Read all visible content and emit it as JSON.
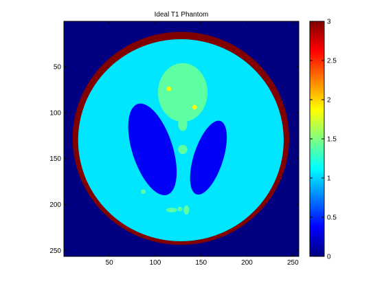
{
  "chart_data": {
    "type": "heatmap",
    "title": "Ideal T1 Phantom",
    "xlabel": "",
    "ylabel": "",
    "xlim": [
      0.5,
      256.5
    ],
    "ylim": [
      256.5,
      0.5
    ],
    "x_ticks": [
      50,
      100,
      150,
      200,
      250
    ],
    "y_ticks": [
      50,
      100,
      150,
      200,
      250
    ],
    "colorbar": {
      "colormap": "jet",
      "clim": [
        0,
        3
      ],
      "ticks": [
        0,
        0.5,
        1,
        1.5,
        2,
        2.5,
        3
      ],
      "tick_labels": [
        "0",
        "0.5",
        "1",
        "1.5",
        "2",
        "2.5",
        "3"
      ]
    },
    "background_value": 0.0,
    "regions": [
      {
        "name": "outer-skull",
        "shape": "ellipse",
        "cx": 128,
        "cy": 128,
        "rx": 118,
        "ry": 116,
        "value": 3.0
      },
      {
        "name": "brain",
        "shape": "ellipse",
        "cx": 128,
        "cy": 130,
        "rx": 112,
        "ry": 110,
        "value": 1.05
      },
      {
        "name": "left-ventricle",
        "shape": "ellipse",
        "cx": 97,
        "cy": 140,
        "rx": 22,
        "ry": 52,
        "rotation": -18,
        "value": 0.35
      },
      {
        "name": "right-ventricle",
        "shape": "ellipse",
        "cx": 158,
        "cy": 149,
        "rx": 16,
        "ry": 42,
        "rotation": 18,
        "value": 0.35
      },
      {
        "name": "central-blob",
        "shape": "ellipse",
        "cx": 130,
        "cy": 78,
        "rx": 27,
        "ry": 32,
        "value": 1.4
      },
      {
        "name": "stem-1",
        "shape": "ellipse",
        "cx": 130,
        "cy": 113,
        "rx": 5,
        "ry": 7,
        "value": 1.4
      },
      {
        "name": "stem-2",
        "shape": "ellipse",
        "cx": 130,
        "cy": 140,
        "rx": 5,
        "ry": 5,
        "value": 1.4
      },
      {
        "name": "spot-yellow-left",
        "shape": "ellipse",
        "cx": 115,
        "cy": 74,
        "rx": 2.5,
        "ry": 2.5,
        "value": 1.9
      },
      {
        "name": "spot-yellow-right",
        "shape": "ellipse",
        "cx": 143,
        "cy": 94,
        "rx": 2.5,
        "ry": 2.5,
        "value": 1.9
      },
      {
        "name": "spot-small-left",
        "shape": "ellipse",
        "cx": 87,
        "cy": 186,
        "rx": 2.5,
        "ry": 2.5,
        "value": 1.4
      },
      {
        "name": "dot-1",
        "shape": "ellipse",
        "cx": 118,
        "cy": 206,
        "rx": 6,
        "ry": 2.5,
        "value": 1.4
      },
      {
        "name": "dot-2",
        "shape": "ellipse",
        "cx": 127,
        "cy": 205,
        "rx": 2.5,
        "ry": 2.5,
        "value": 1.4
      },
      {
        "name": "dot-3",
        "shape": "ellipse",
        "cx": 134,
        "cy": 206,
        "rx": 3,
        "ry": 5,
        "value": 1.4
      }
    ]
  }
}
